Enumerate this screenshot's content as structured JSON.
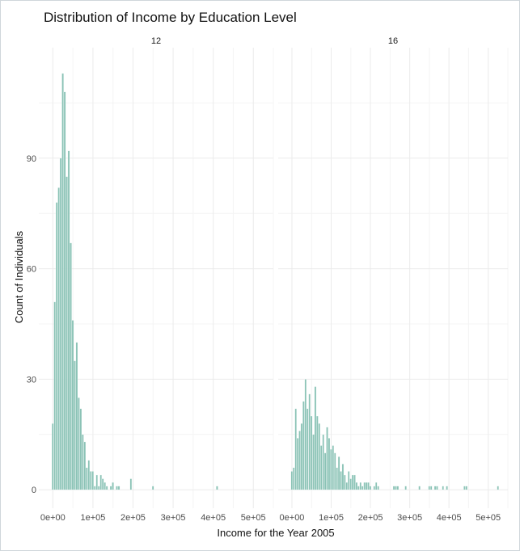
{
  "chart_data": {
    "type": "bar",
    "title": "Distribution of Income by Education Level",
    "xlabel": "Income for the Year 2005",
    "ylabel": "Count of Individuals",
    "xlim": [
      -35000,
      550000
    ],
    "ylim": [
      -5,
      120
    ],
    "x_ticks": [
      0,
      100000,
      200000,
      300000,
      400000,
      500000
    ],
    "x_tick_labels": [
      "0e+00",
      "1e+05",
      "2e+05",
      "3e+05",
      "4e+05",
      "5e+05"
    ],
    "y_ticks": [
      0,
      30,
      60,
      90
    ],
    "y_tick_labels": [
      "0",
      "30",
      "60",
      "90"
    ],
    "bin_width": 5000,
    "bar_color": "#8bc3b6",
    "grid": true,
    "panels": [
      {
        "label": "12",
        "bins": [
          {
            "x": 0,
            "y": 18
          },
          {
            "x": 5000,
            "y": 51
          },
          {
            "x": 10000,
            "y": 78
          },
          {
            "x": 15000,
            "y": 82
          },
          {
            "x": 20000,
            "y": 90
          },
          {
            "x": 25000,
            "y": 113
          },
          {
            "x": 30000,
            "y": 108
          },
          {
            "x": 35000,
            "y": 85
          },
          {
            "x": 40000,
            "y": 92
          },
          {
            "x": 45000,
            "y": 67
          },
          {
            "x": 50000,
            "y": 46
          },
          {
            "x": 55000,
            "y": 35
          },
          {
            "x": 60000,
            "y": 40
          },
          {
            "x": 65000,
            "y": 25
          },
          {
            "x": 70000,
            "y": 22
          },
          {
            "x": 75000,
            "y": 15
          },
          {
            "x": 80000,
            "y": 13
          },
          {
            "x": 85000,
            "y": 6
          },
          {
            "x": 90000,
            "y": 8
          },
          {
            "x": 95000,
            "y": 5
          },
          {
            "x": 100000,
            "y": 5
          },
          {
            "x": 105000,
            "y": 1
          },
          {
            "x": 110000,
            "y": 4
          },
          {
            "x": 115000,
            "y": 1
          },
          {
            "x": 120000,
            "y": 4
          },
          {
            "x": 125000,
            "y": 3
          },
          {
            "x": 130000,
            "y": 2
          },
          {
            "x": 135000,
            "y": 1
          },
          {
            "x": 145000,
            "y": 1
          },
          {
            "x": 150000,
            "y": 2
          },
          {
            "x": 160000,
            "y": 1
          },
          {
            "x": 165000,
            "y": 1
          },
          {
            "x": 195000,
            "y": 3
          },
          {
            "x": 250000,
            "y": 1
          },
          {
            "x": 410000,
            "y": 1
          }
        ]
      },
      {
        "label": "16",
        "bins": [
          {
            "x": 0,
            "y": 5
          },
          {
            "x": 5000,
            "y": 6
          },
          {
            "x": 10000,
            "y": 22
          },
          {
            "x": 15000,
            "y": 14
          },
          {
            "x": 20000,
            "y": 16
          },
          {
            "x": 25000,
            "y": 18
          },
          {
            "x": 30000,
            "y": 24
          },
          {
            "x": 35000,
            "y": 30
          },
          {
            "x": 40000,
            "y": 22
          },
          {
            "x": 45000,
            "y": 26
          },
          {
            "x": 50000,
            "y": 20
          },
          {
            "x": 55000,
            "y": 15
          },
          {
            "x": 60000,
            "y": 28
          },
          {
            "x": 65000,
            "y": 20
          },
          {
            "x": 70000,
            "y": 18
          },
          {
            "x": 75000,
            "y": 12
          },
          {
            "x": 80000,
            "y": 15
          },
          {
            "x": 85000,
            "y": 10
          },
          {
            "x": 90000,
            "y": 17
          },
          {
            "x": 95000,
            "y": 14
          },
          {
            "x": 100000,
            "y": 11
          },
          {
            "x": 105000,
            "y": 12
          },
          {
            "x": 110000,
            "y": 10
          },
          {
            "x": 115000,
            "y": 6
          },
          {
            "x": 120000,
            "y": 9
          },
          {
            "x": 125000,
            "y": 5
          },
          {
            "x": 130000,
            "y": 7
          },
          {
            "x": 135000,
            "y": 4
          },
          {
            "x": 140000,
            "y": 2
          },
          {
            "x": 145000,
            "y": 5
          },
          {
            "x": 150000,
            "y": 3
          },
          {
            "x": 155000,
            "y": 4
          },
          {
            "x": 160000,
            "y": 4
          },
          {
            "x": 165000,
            "y": 2
          },
          {
            "x": 170000,
            "y": 1
          },
          {
            "x": 175000,
            "y": 2
          },
          {
            "x": 180000,
            "y": 1
          },
          {
            "x": 185000,
            "y": 2
          },
          {
            "x": 190000,
            "y": 2
          },
          {
            "x": 195000,
            "y": 2
          },
          {
            "x": 200000,
            "y": 1
          },
          {
            "x": 210000,
            "y": 1
          },
          {
            "x": 215000,
            "y": 2
          },
          {
            "x": 220000,
            "y": 1
          },
          {
            "x": 260000,
            "y": 1
          },
          {
            "x": 265000,
            "y": 1
          },
          {
            "x": 270000,
            "y": 1
          },
          {
            "x": 290000,
            "y": 1
          },
          {
            "x": 325000,
            "y": 1
          },
          {
            "x": 350000,
            "y": 1
          },
          {
            "x": 355000,
            "y": 1
          },
          {
            "x": 365000,
            "y": 1
          },
          {
            "x": 370000,
            "y": 1
          },
          {
            "x": 385000,
            "y": 1
          },
          {
            "x": 395000,
            "y": 1
          },
          {
            "x": 440000,
            "y": 1
          },
          {
            "x": 445000,
            "y": 1
          },
          {
            "x": 525000,
            "y": 1
          }
        ]
      }
    ]
  }
}
